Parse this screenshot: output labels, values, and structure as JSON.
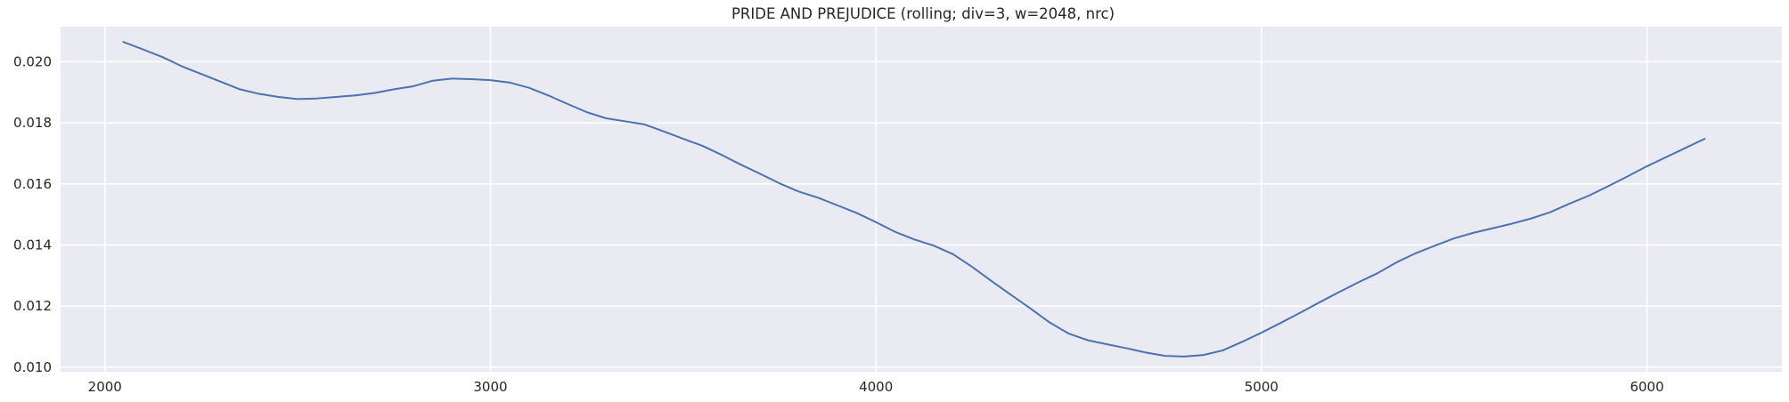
{
  "chart_data": {
    "type": "line",
    "title": "PRIDE AND PREJUDICE  (rolling; div=3, w=2048, nrc)",
    "xlabel": "",
    "ylabel": "",
    "xlim": [
      1885,
      6350
    ],
    "ylim": [
      0.00985,
      0.02115
    ],
    "xticks": [
      2000,
      3000,
      4000,
      5000,
      6000
    ],
    "xtick_labels": [
      "2000",
      "3000",
      "4000",
      "5000",
      "6000"
    ],
    "yticks": [
      0.01,
      0.012,
      0.014,
      0.016,
      0.018,
      0.02
    ],
    "ytick_labels": [
      "0.010",
      "0.012",
      "0.014",
      "0.016",
      "0.018",
      "0.020"
    ],
    "grid": true,
    "colors": {
      "background": "#eaeaf2",
      "grid": "#ffffff",
      "line": "#4c72b0",
      "text": "#262626"
    },
    "series": [
      {
        "x": [
          2048,
          2100,
          2150,
          2200,
          2250,
          2300,
          2350,
          2400,
          2450,
          2500,
          2550,
          2600,
          2650,
          2700,
          2750,
          2800,
          2850,
          2900,
          2950,
          3000,
          3050,
          3100,
          3150,
          3200,
          3250,
          3300,
          3350,
          3400,
          3450,
          3500,
          3550,
          3600,
          3650,
          3700,
          3750,
          3800,
          3850,
          3900,
          3950,
          4000,
          4050,
          4100,
          4150,
          4200,
          4250,
          4300,
          4350,
          4400,
          4450,
          4500,
          4550,
          4600,
          4650,
          4700,
          4750,
          4800,
          4850,
          4900,
          4950,
          5000,
          5050,
          5100,
          5150,
          5200,
          5250,
          5300,
          5350,
          5400,
          5450,
          5500,
          5550,
          5600,
          5650,
          5700,
          5750,
          5800,
          5850,
          5900,
          5950,
          6000,
          6050,
          6100,
          6150
        ],
        "values": [
          0.02065,
          0.0204,
          0.02015,
          0.01985,
          0.0196,
          0.01935,
          0.0191,
          0.01895,
          0.01885,
          0.01878,
          0.0188,
          0.01885,
          0.0189,
          0.01898,
          0.0191,
          0.0192,
          0.01938,
          0.01945,
          0.01943,
          0.0194,
          0.01932,
          0.01915,
          0.0189,
          0.01862,
          0.01835,
          0.01815,
          0.01805,
          0.01795,
          0.01772,
          0.01748,
          0.01725,
          0.01695,
          0.01663,
          0.01633,
          0.01602,
          0.01575,
          0.01555,
          0.0153,
          0.01505,
          0.01475,
          0.01443,
          0.01418,
          0.01398,
          0.0137,
          0.01328,
          0.01282,
          0.01237,
          0.01193,
          0.01147,
          0.0111,
          0.01088,
          0.01075,
          0.01062,
          0.01048,
          0.01037,
          0.01035,
          0.0104,
          0.01055,
          0.01083,
          0.01113,
          0.01145,
          0.01178,
          0.01212,
          0.01245,
          0.01277,
          0.01307,
          0.01343,
          0.01373,
          0.01398,
          0.01422,
          0.0144,
          0.01455,
          0.0147,
          0.01487,
          0.01508,
          0.01536,
          0.01562,
          0.01593,
          0.01625,
          0.01658,
          0.01688,
          0.01718,
          0.01748
        ]
      }
    ]
  }
}
